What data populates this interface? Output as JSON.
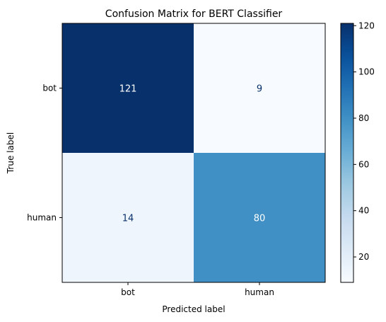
{
  "chart_data": {
    "type": "heatmap",
    "title": "Confusion Matrix for BERT Classifier",
    "xlabel": "Predicted label",
    "ylabel": "True label",
    "x_categories": [
      "bot",
      "human"
    ],
    "y_categories": [
      "bot",
      "human"
    ],
    "values": [
      [
        121,
        9
      ],
      [
        14,
        80
      ]
    ],
    "colormap": "Blues",
    "colorbar": {
      "min": 9,
      "max": 121,
      "ticks": [
        20,
        40,
        60,
        80,
        100,
        120
      ]
    },
    "colors": {
      "low": "#f7fbff",
      "high": "#08306b",
      "text_dark": "#08306b",
      "text_light": "#ffffff"
    }
  }
}
